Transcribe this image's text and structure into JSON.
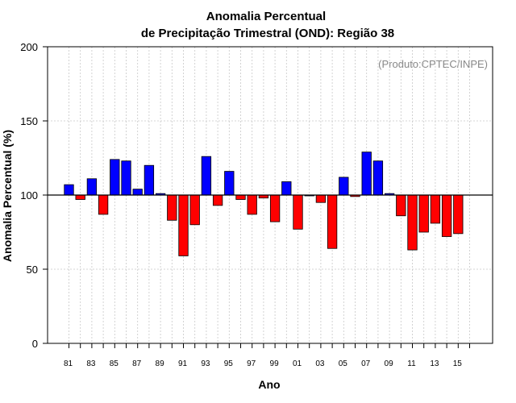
{
  "chart_data": {
    "type": "bar",
    "title_line1": "Anomalia Percentual",
    "title_line2": "de Precipitação Trimestral (OND): Região 38",
    "xlabel": "Ano",
    "ylabel": "Anomalia Percentual (%)",
    "credit": "(Produto:CPTEC/INPE)",
    "baseline": 100,
    "ylim": [
      0,
      200
    ],
    "yticks": [
      "0",
      "50",
      "100",
      "150",
      "200"
    ],
    "grid": true,
    "x_tick_labels": [
      "81",
      "83",
      "85",
      "87",
      "89",
      "91",
      "93",
      "95",
      "97",
      "99",
      "01",
      "03",
      "05",
      "07",
      "09",
      "11",
      "13",
      "15"
    ],
    "categories": [
      "1981",
      "1982",
      "1983",
      "1984",
      "1985",
      "1986",
      "1987",
      "1988",
      "1989",
      "1990",
      "1991",
      "1992",
      "1993",
      "1994",
      "1995",
      "1996",
      "1997",
      "1998",
      "1999",
      "2000",
      "2001",
      "2002",
      "2003",
      "2004",
      "2005",
      "2006",
      "2007",
      "2008",
      "2009",
      "2010",
      "2011",
      "2012",
      "2013",
      "2014",
      "2015"
    ],
    "values": [
      107,
      97,
      111,
      87,
      124,
      123,
      104,
      120,
      101,
      83,
      59,
      80,
      126,
      93,
      116,
      97,
      87,
      98,
      82,
      109,
      77,
      100,
      95,
      64,
      112,
      99,
      129,
      123,
      101,
      86,
      63,
      75,
      81,
      72,
      74
    ],
    "colors": {
      "above": "#0000ff",
      "below": "#ff0000",
      "baseline": "#000000",
      "grid": "#c8c8c8"
    }
  }
}
